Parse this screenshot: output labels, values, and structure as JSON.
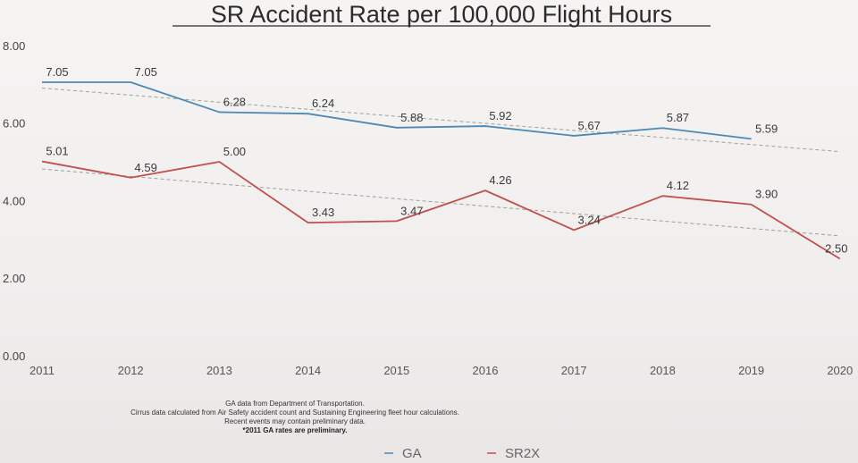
{
  "chart_data": {
    "type": "line",
    "title": "SR Accident Rate per 100,000 Flight Hours",
    "x": [
      "2011",
      "2012",
      "2013",
      "2014",
      "2015",
      "2016",
      "2017",
      "2018",
      "2019",
      "2020"
    ],
    "y_tick_labels": [
      "0.00",
      "2.00",
      "4.00",
      "6.00",
      "8.00"
    ],
    "ylim": [
      0,
      8
    ],
    "grid": false,
    "legend_position": "bottom-center",
    "series": [
      {
        "name": "GA",
        "color": "#4a8ab5",
        "values": [
          7.05,
          7.05,
          6.28,
          6.24,
          5.88,
          5.92,
          5.67,
          5.87,
          5.59,
          null
        ],
        "labels": [
          "7.05",
          "7.05",
          "6.28",
          "6.24",
          "5.88",
          "5.92",
          "5.67",
          "5.87",
          "5.59",
          ""
        ]
      },
      {
        "name": "SR2X",
        "color": "#c0504d",
        "values": [
          5.01,
          4.59,
          5.0,
          3.43,
          3.47,
          4.26,
          3.24,
          4.12,
          3.9,
          2.5
        ],
        "labels": [
          "5.01",
          "4.59",
          "5.00",
          "3.43",
          "3.47",
          "4.26",
          "3.24",
          "4.12",
          "3.90",
          "2.50"
        ]
      }
    ],
    "trendline_color": "#9aa29a",
    "footnotes": [
      "GA data from Department of Transportation.",
      "Cirrus data calculated from Air Safety accident count and Sustaining Engineering fleet hour calculations.",
      "Recent events may contain preliminary data.",
      "*2011 GA rates are preliminary."
    ]
  }
}
